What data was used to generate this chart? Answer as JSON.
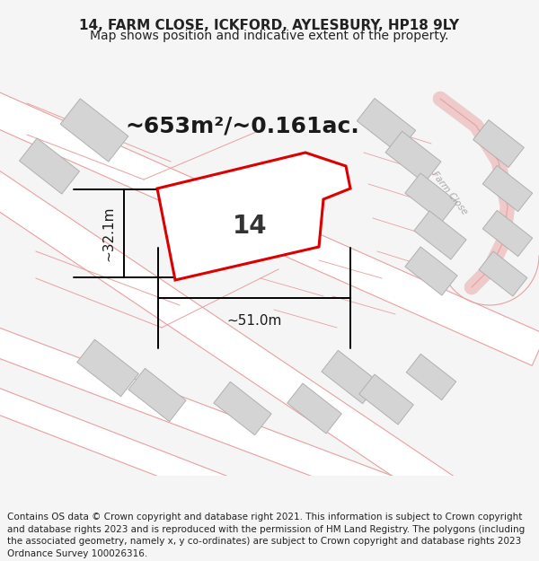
{
  "title": "14, FARM CLOSE, ICKFORD, AYLESBURY, HP18 9LY",
  "subtitle": "Map shows position and indicative extent of the property.",
  "area_text": "~653m²/~0.161ac.",
  "label_14": "14",
  "dim_width": "~51.0m",
  "dim_height": "~32.1m",
  "footer": "Contains OS data © Crown copyright and database right 2021. This information is subject to Crown copyright and database rights 2023 and is reproduced with the permission of HM Land Registry. The polygons (including the associated geometry, namely x, y co-ordinates) are subject to Crown copyright and database rights 2023 Ordnance Survey 100026316.",
  "bg_color": "#f5f5f5",
  "map_bg": "#ffffff",
  "road_line_color": "#e8a0a0",
  "building_color": "#d4d4d4",
  "building_edge_color": "#b0b0b0",
  "highlight_color": "#dd0000",
  "road_label": "Farm Close",
  "figsize": [
    6.0,
    6.25
  ],
  "dpi": 100,
  "title_fontsize": 11,
  "subtitle_fontsize": 10,
  "area_fontsize": 18,
  "label_fontsize": 20,
  "dim_fontsize": 11,
  "footer_fontsize": 7.5
}
